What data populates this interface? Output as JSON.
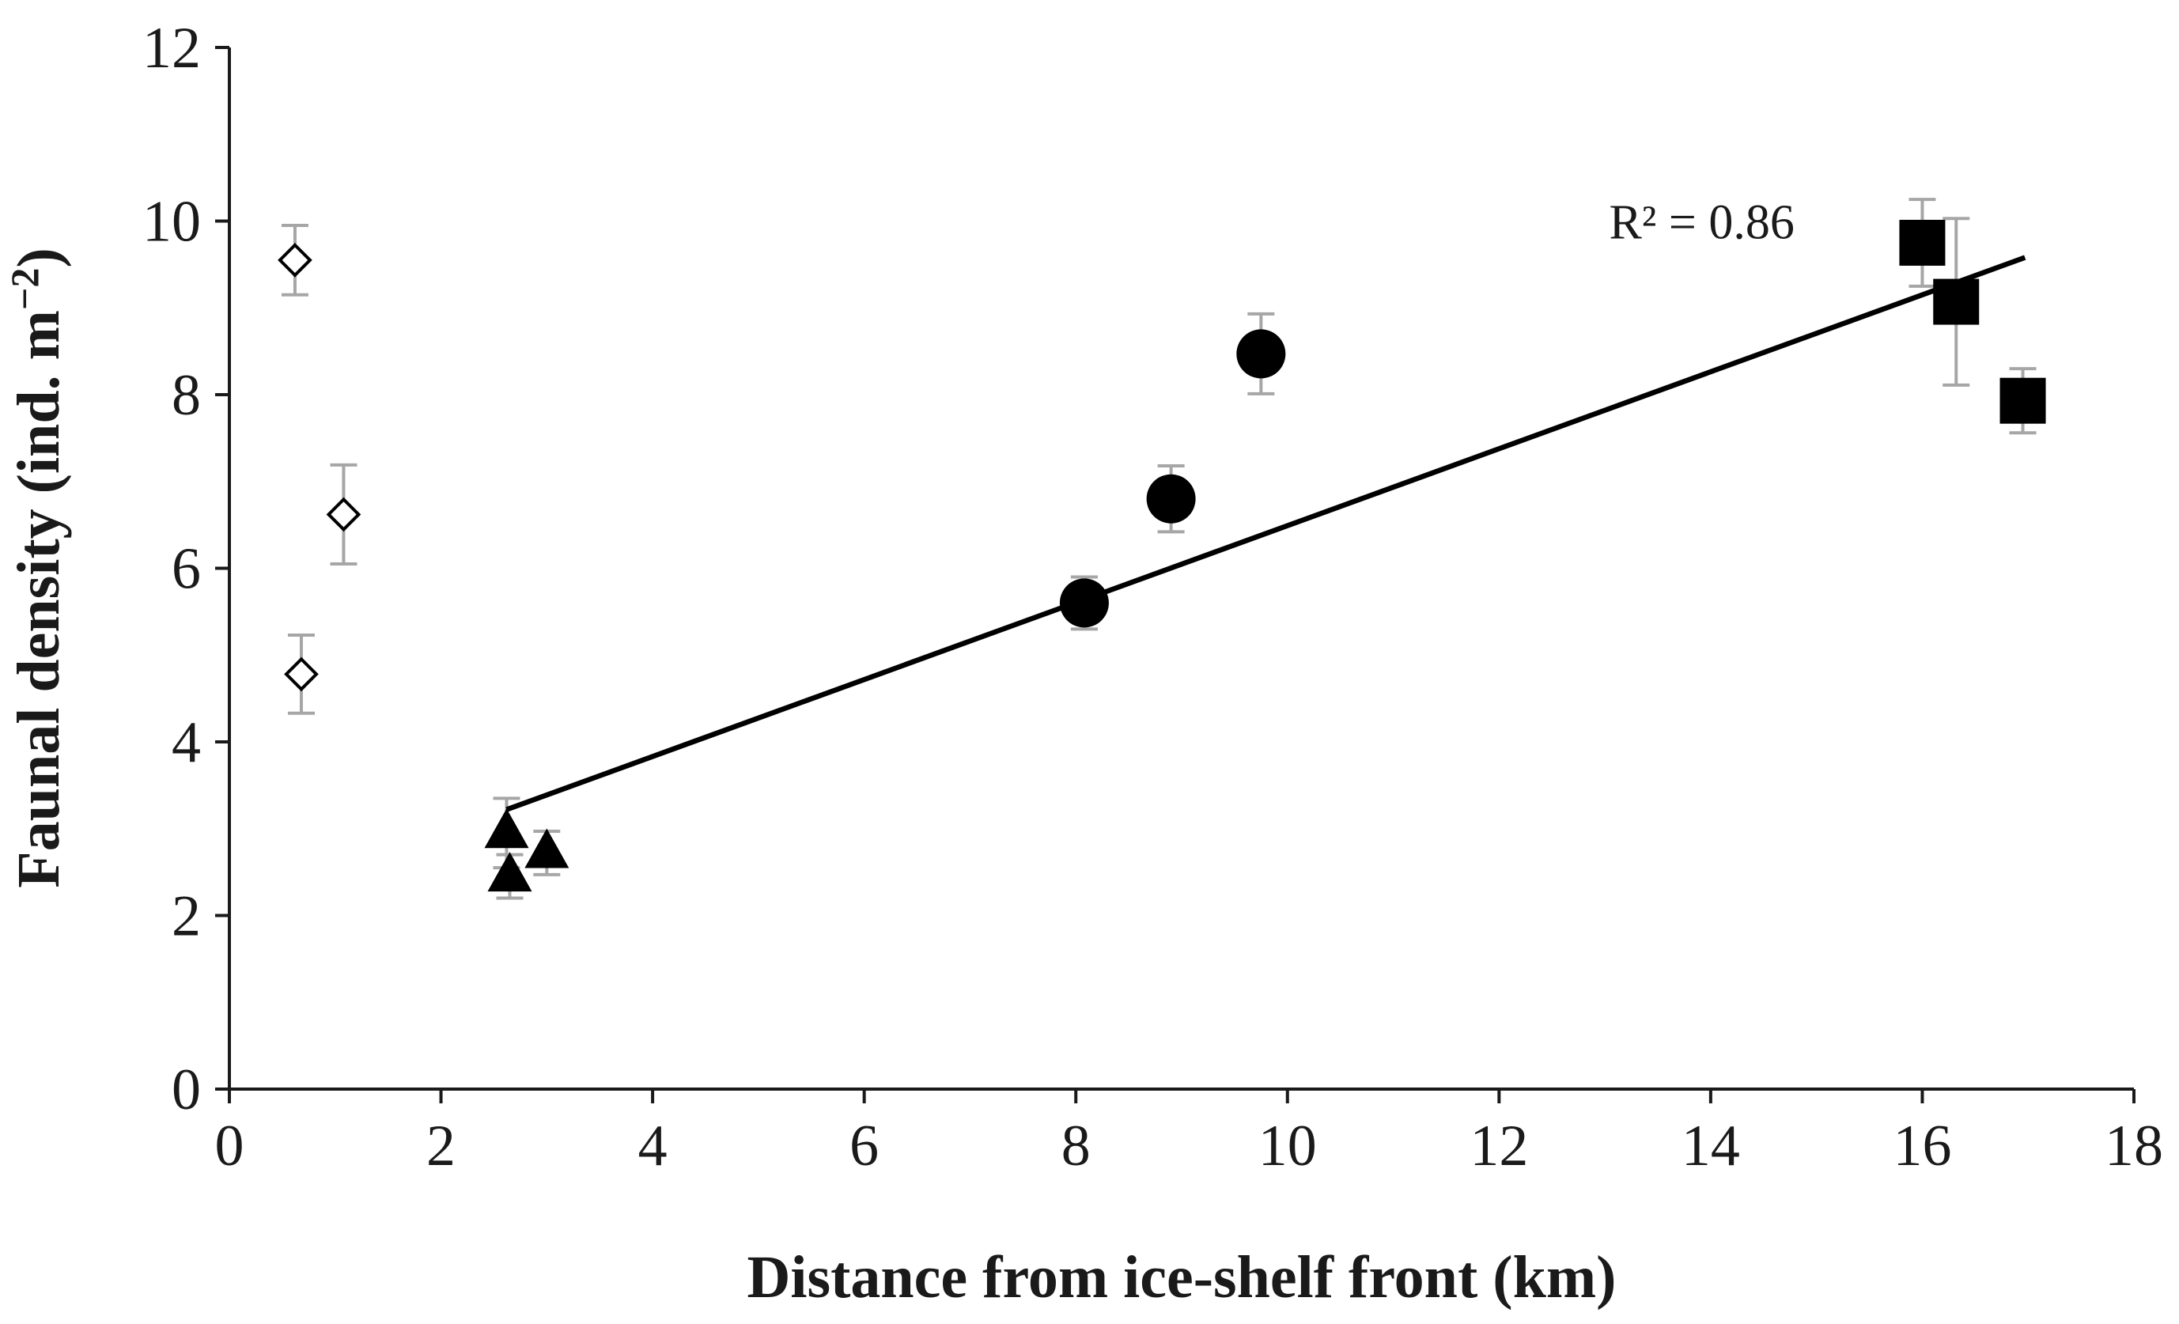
{
  "chart_data": {
    "type": "scatter",
    "title": "",
    "xlabel": "Distance from ice-shelf front (km)",
    "ylabel": "Faunal density (ind. m",
    "ylabel_superscript": "−2",
    "ylabel_suffix": ")",
    "xlim": [
      0,
      18
    ],
    "ylim": [
      0,
      12
    ],
    "xticks": [
      "0",
      "2",
      "4",
      "6",
      "8",
      "10",
      "12",
      "14",
      "16",
      "18"
    ],
    "yticks": [
      "0",
      "2",
      "4",
      "6",
      "8",
      "10",
      "12"
    ],
    "grid": false,
    "legend": "none",
    "series": [
      {
        "name": "open-diamond",
        "marker": "diamond",
        "filled": false,
        "points": [
          {
            "x": 0.62,
            "y": 9.55,
            "err": 0.4
          },
          {
            "x": 1.08,
            "y": 6.62,
            "err": 0.57
          },
          {
            "x": 0.68,
            "y": 4.78,
            "err": 0.45
          }
        ]
      },
      {
        "name": "filled-triangle",
        "marker": "triangle",
        "filled": true,
        "points": [
          {
            "x": 2.62,
            "y": 2.95,
            "err": 0.4
          },
          {
            "x": 2.65,
            "y": 2.45,
            "err": 0.25
          },
          {
            "x": 3.0,
            "y": 2.72,
            "err": 0.25
          }
        ]
      },
      {
        "name": "filled-circle",
        "marker": "circle",
        "filled": true,
        "points": [
          {
            "x": 8.08,
            "y": 5.6,
            "err": 0.3
          },
          {
            "x": 8.9,
            "y": 6.8,
            "err": 0.38
          },
          {
            "x": 9.75,
            "y": 8.47,
            "err": 0.46
          }
        ]
      },
      {
        "name": "filled-square",
        "marker": "square",
        "filled": true,
        "points": [
          {
            "x": 16.0,
            "y": 9.75,
            "err": 0.5
          },
          {
            "x": 16.32,
            "y": 9.07,
            "err": 0.96
          },
          {
            "x": 16.95,
            "y": 7.93,
            "err": 0.37
          }
        ]
      }
    ],
    "trendline": {
      "x0": 2.62,
      "y0": 3.22,
      "x1": 16.97,
      "y1": 9.58
    },
    "annotations": [
      {
        "text": "R² = 0.86",
        "x": 13.04,
        "y": 10.0
      }
    ]
  }
}
